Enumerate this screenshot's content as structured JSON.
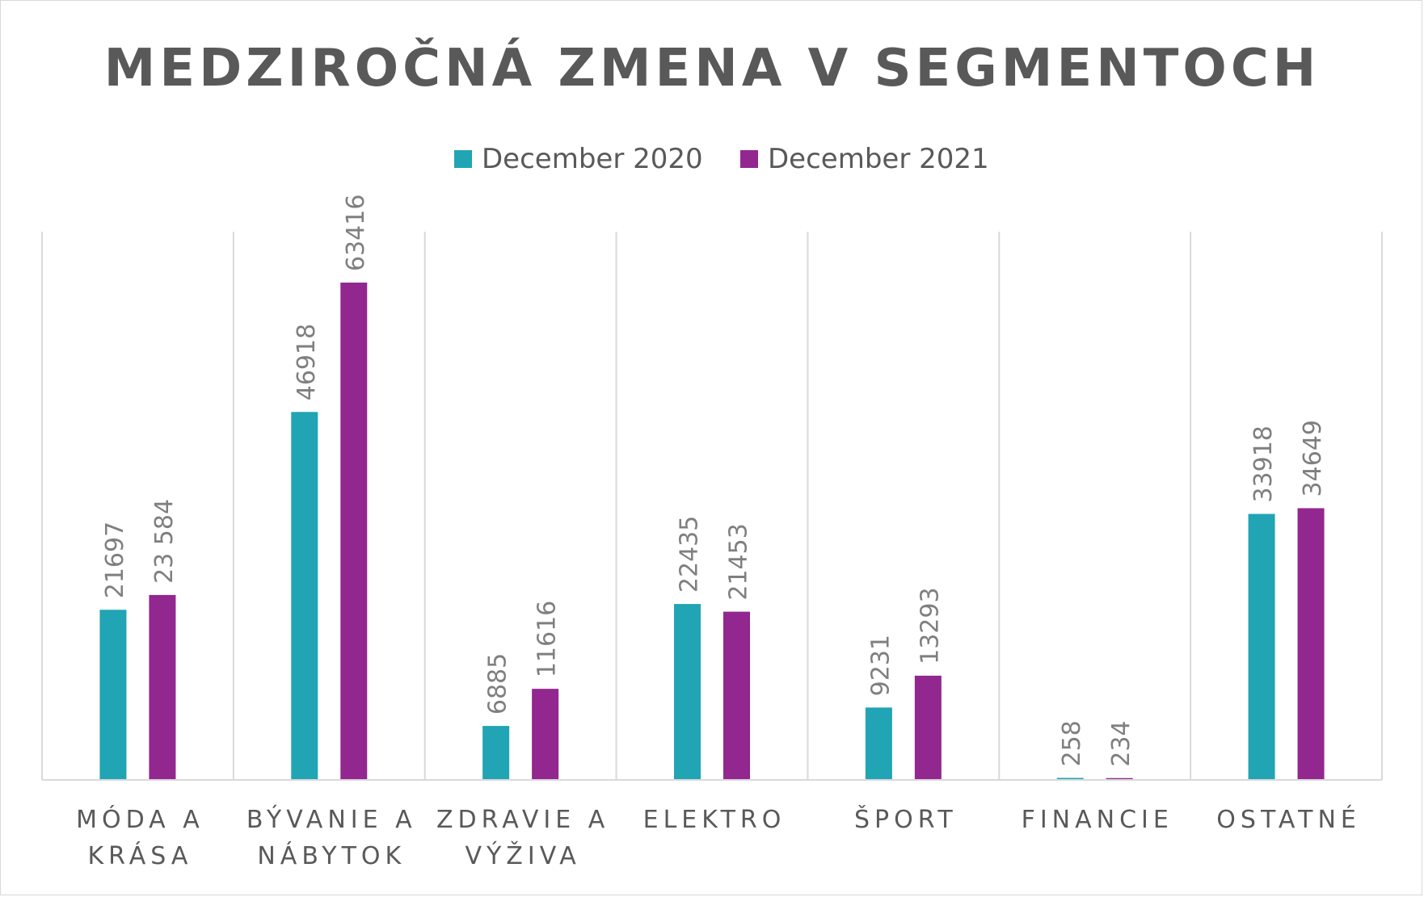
{
  "chart_data": {
    "type": "bar",
    "title": "MEDZIROČNÁ ZMENA V SEGMENTOCH",
    "categories": [
      [
        "MÓDA A",
        "KRÁSA"
      ],
      [
        "BÝVANIE A",
        "NÁBYTOK"
      ],
      [
        "ZDRAVIE A",
        "VÝŽIVA"
      ],
      [
        "ELEKTRO"
      ],
      [
        "ŠPORT"
      ],
      [
        "FINANCIE"
      ],
      [
        "OSTATNÉ"
      ]
    ],
    "series": [
      {
        "name": "December 2020",
        "color": "#21a4b4",
        "values": [
          21697,
          46918,
          6885,
          22435,
          9231,
          258,
          33918
        ],
        "labels": [
          "21697",
          "46918",
          "6885",
          "22435",
          "9231",
          "258",
          "33918"
        ]
      },
      {
        "name": "December 2021",
        "color": "#92278f",
        "values": [
          23584,
          63416,
          11616,
          21453,
          13293,
          234,
          34649
        ],
        "labels": [
          "23 584",
          "63416",
          "11616",
          "21453",
          "13293",
          "234",
          "34649"
        ]
      }
    ],
    "ylim": [
      0,
      75000
    ],
    "grid": "vertical-category-separators",
    "legend": "top-center"
  }
}
